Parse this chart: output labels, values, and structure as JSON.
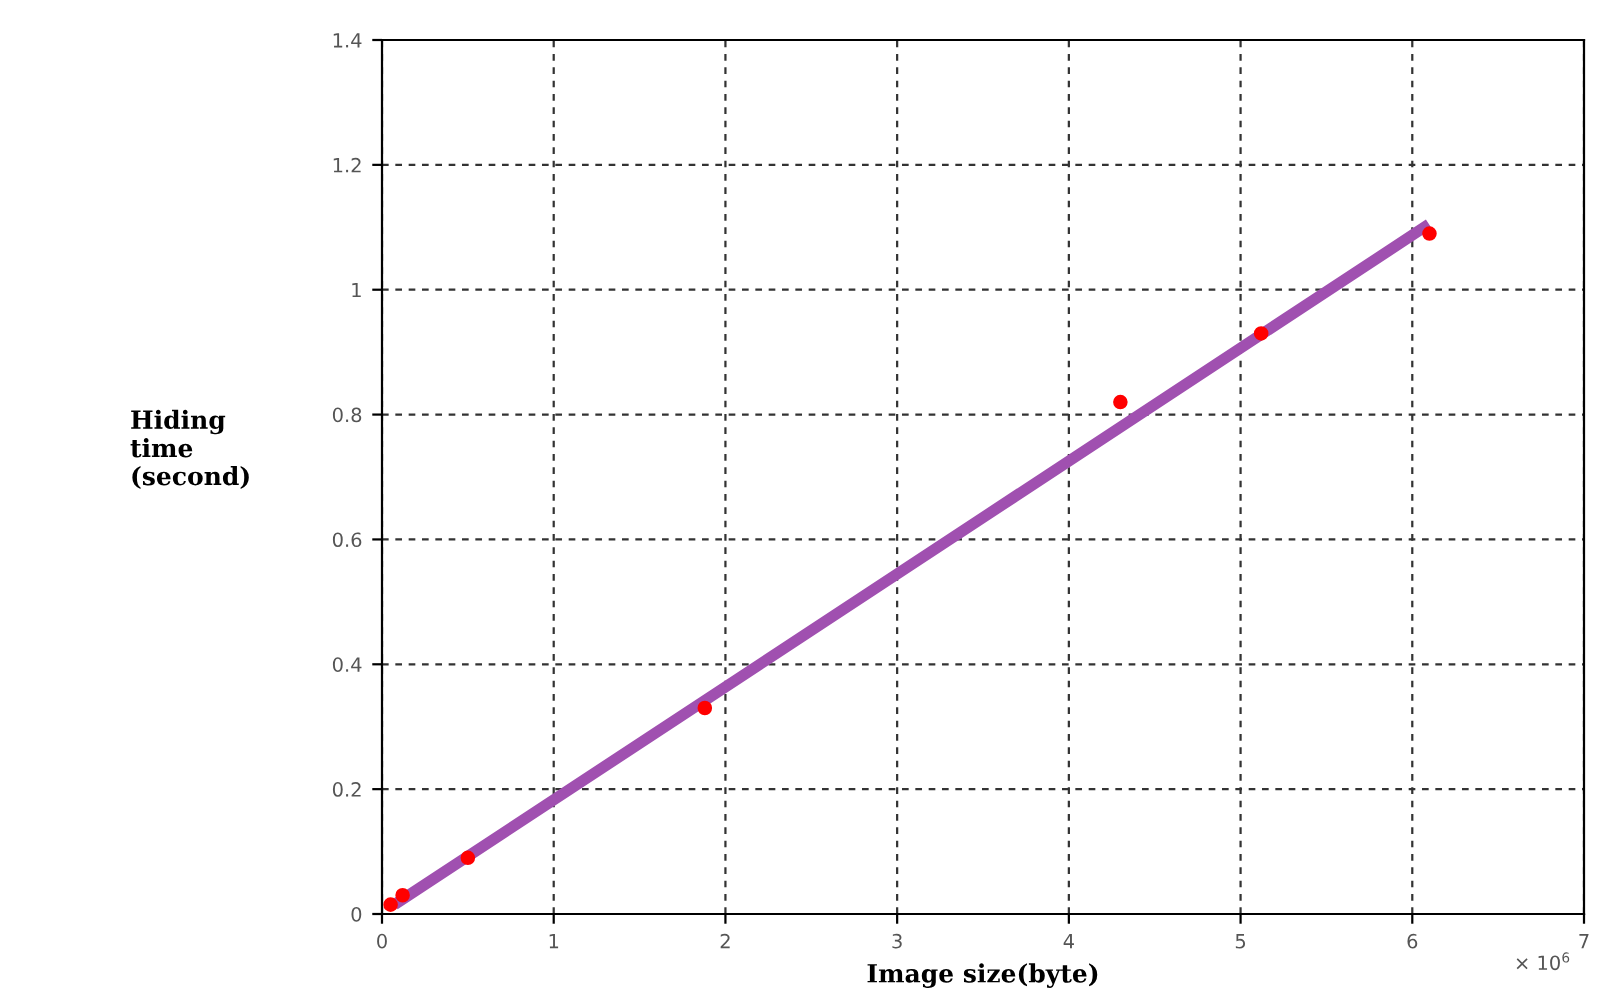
{
  "chart_data": {
    "type": "scatter",
    "xlabel": "Image size(byte)",
    "ylabel": "Hiding\ntime\n(second)",
    "annotations": [
      "× 10$^{6}$"
    ],
    "series": [
      {
        "color": "#ff0000",
        "x": [
          0.05,
          0.12,
          0.5,
          1.88,
          4.3,
          5.12,
          6.1
        ],
        "values": [
          0.015,
          0.03,
          0.09,
          0.33,
          0.82,
          0.93,
          1.09
        ]
      },
      {
        "type": "line",
        "color": "#a050b0",
        "x": [
          0.1,
          6.07
        ],
        "values": [
          0.02,
          1.1
        ]
      }
    ],
    "xlim": [
      0,
      7
    ],
    "xticks": [
      0,
      1,
      2,
      3,
      4,
      5,
      6,
      7
    ],
    "ylim": [
      0,
      1.4
    ],
    "yticks": [
      0,
      0.2,
      0.4,
      0.6,
      0.8,
      1,
      1.2,
      1.4
    ],
    "grid": true
  }
}
